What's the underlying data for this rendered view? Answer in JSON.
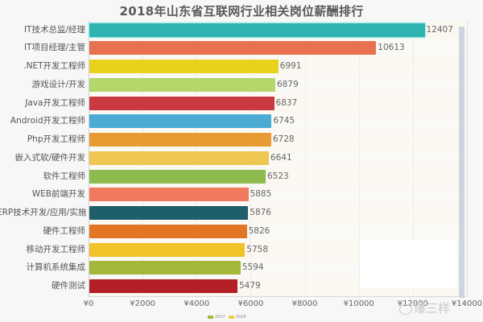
{
  "title": "2018年山东省互联网行业相关岗位薪酬排行",
  "chart_data": {
    "type": "bar",
    "orientation": "horizontal",
    "title": "2018年山东省互联网行业相关岗位薪酬排行",
    "xlabel": "",
    "ylabel": "",
    "xlim": [
      0,
      14000
    ],
    "grid": true,
    "legend_position": "bottom",
    "categories": [
      "IT技术总监/经理",
      "IT项目经理/主管",
      ".NET开发工程师",
      "游戏设计/开发",
      "Java开发工程师",
      "Android开发工程师",
      "Php开发工程师",
      "嵌入式软/硬件开发",
      "软件工程师",
      "WEB前端开发",
      "ERP技术开发/应用/实施",
      "硬件工程师",
      "移动开发工程师",
      "计算机系统集成",
      "硬件测试"
    ],
    "values": [
      12407,
      10613,
      6991,
      6879,
      6837,
      6745,
      6728,
      6641,
      6523,
      5885,
      5876,
      5826,
      5758,
      5594,
      5479
    ],
    "value_labels": [
      "12407",
      "10613",
      "6991",
      "6879",
      "6837",
      "6745",
      "6728",
      "6641",
      "6523",
      "5885",
      "5876",
      "5826",
      "5758",
      "5594",
      "5479"
    ],
    "bar_colors": [
      "#2fb3b0",
      "#e8724f",
      "#e8d21c",
      "#b5d66a",
      "#c9393f",
      "#4cabd3",
      "#e89a33",
      "#edc752",
      "#8dbb4e",
      "#ef7a5e",
      "#1f5e6b",
      "#e27625",
      "#f1c22a",
      "#a3b838",
      "#b41e26"
    ],
    "x_ticks": [
      "¥0",
      "¥2000",
      "¥4000",
      "¥6000",
      "¥8000",
      "¥10000",
      "¥12000",
      "¥14000"
    ],
    "x_tick_values": [
      0,
      2000,
      4000,
      6000,
      8000,
      10000,
      12000,
      14000
    ],
    "legend": [
      {
        "label": "2017",
        "color": "#9dbb3c"
      },
      {
        "label": "2018",
        "color": "#e9d24a"
      }
    ]
  },
  "watermark": "爆三样"
}
